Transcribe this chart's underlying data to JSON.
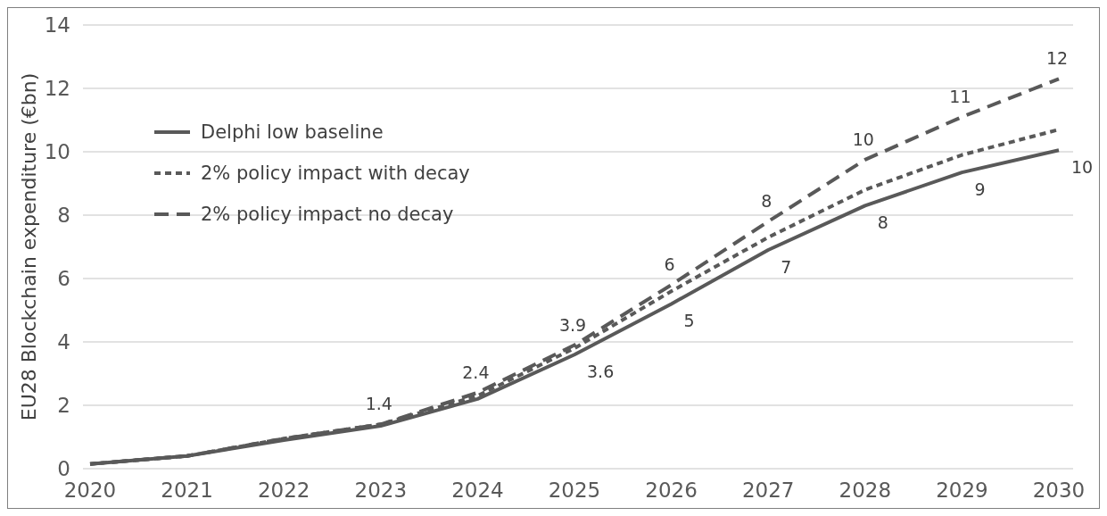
{
  "chart_data": {
    "type": "line",
    "ylabel": "EU28 Blockchain expenditure (€bn)",
    "categories": [
      "2020",
      "2021",
      "2022",
      "2023",
      "2024",
      "2025",
      "2026",
      "2027",
      "2028",
      "2029",
      "2030"
    ],
    "series": [
      {
        "name": "Delphi low baseline",
        "color": "#595959",
        "line_style": "solid",
        "values": [
          0.15,
          0.4,
          0.9,
          1.35,
          2.2,
          3.6,
          5.2,
          6.9,
          8.3,
          9.35,
          10.05
        ],
        "value_labels": [
          null,
          null,
          null,
          null,
          null,
          "3.6",
          "5",
          "7",
          "8",
          "9",
          "10"
        ]
      },
      {
        "name": "2% policy impact with decay",
        "color": "#595959",
        "line_style": "dotted",
        "values": [
          0.15,
          0.4,
          0.95,
          1.4,
          2.3,
          3.8,
          5.6,
          7.3,
          8.8,
          9.9,
          10.7
        ]
      },
      {
        "name": "2% policy impact no decay",
        "color": "#595959",
        "line_style": "dashed",
        "values": [
          0.15,
          0.4,
          0.95,
          1.4,
          2.4,
          3.9,
          5.8,
          7.8,
          9.75,
          11.1,
          12.3
        ],
        "value_labels": [
          null,
          null,
          null,
          "1.4",
          "2.4",
          "3.9",
          "6",
          "8",
          "10",
          "11",
          "12"
        ]
      }
    ],
    "ylim": [
      0,
      14
    ],
    "yticks": [
      0,
      2,
      4,
      6,
      8,
      10,
      12,
      14
    ],
    "grid": "y",
    "legend": "top left",
    "marker": "none"
  }
}
